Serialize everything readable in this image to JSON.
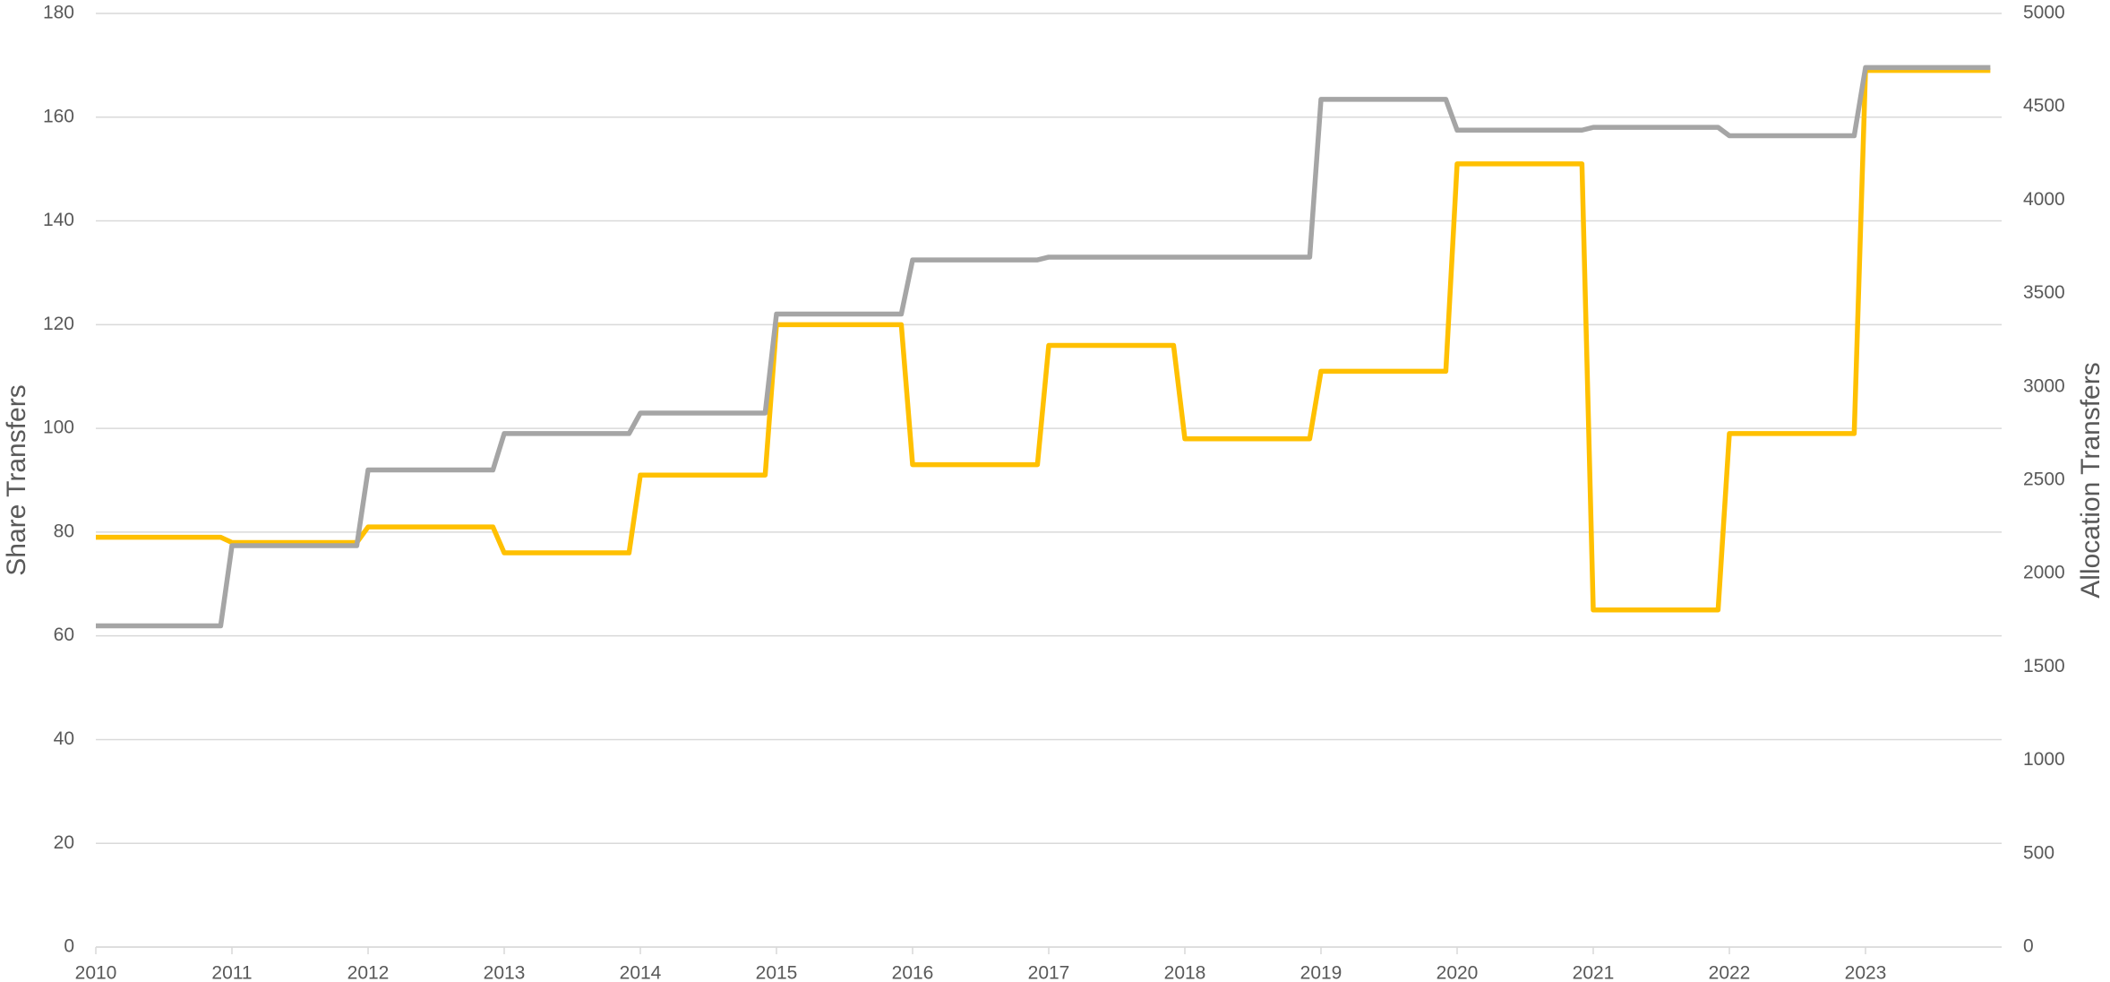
{
  "chart_data": {
    "type": "line",
    "y_label": "Share Transfers",
    "y2_label": "Allocation Transfers",
    "x": [
      2010,
      2010.917,
      2011,
      2011.917,
      2012,
      2012.917,
      2013,
      2013.917,
      2014,
      2014.917,
      2015,
      2015.917,
      2016,
      2016.917,
      2017,
      2017.917,
      2018,
      2018.917,
      2019,
      2019.917,
      2020,
      2020.917,
      2021,
      2021.917,
      2022,
      2022.917,
      2023,
      2023.917
    ],
    "series": [
      {
        "color": "#ffc000",
        "axis": "y",
        "values": [
          79,
          79,
          78,
          78,
          81,
          81,
          76,
          76,
          91,
          91,
          120,
          120,
          93,
          93,
          116,
          116,
          98,
          98,
          111,
          111,
          151,
          151,
          65,
          65,
          99,
          99,
          169,
          169
        ]
      },
      {
        "color": "#a5a5a5",
        "axis": "y2",
        "values": [
          1720,
          1720,
          2150,
          2150,
          2555,
          2555,
          2750,
          2750,
          2860,
          2860,
          3390,
          3390,
          3680,
          3680,
          3695,
          3695,
          3695,
          3695,
          4540,
          4540,
          4375,
          4375,
          4390,
          4390,
          4345,
          4345,
          4710,
          4710
        ]
      }
    ],
    "xlim": [
      2010,
      2024
    ],
    "xticks": [
      2010,
      2011,
      2012,
      2013,
      2014,
      2015,
      2016,
      2017,
      2018,
      2019,
      2020,
      2021,
      2022,
      2023
    ],
    "ylim": [
      0,
      180
    ],
    "yticks": [
      0,
      20,
      40,
      60,
      80,
      100,
      120,
      140,
      160,
      180
    ],
    "y2lim": [
      0,
      5000
    ],
    "y2ticks": [
      0,
      500,
      1000,
      1500,
      2000,
      2500,
      3000,
      3500,
      4000,
      4500,
      5000
    ],
    "grid": true
  }
}
